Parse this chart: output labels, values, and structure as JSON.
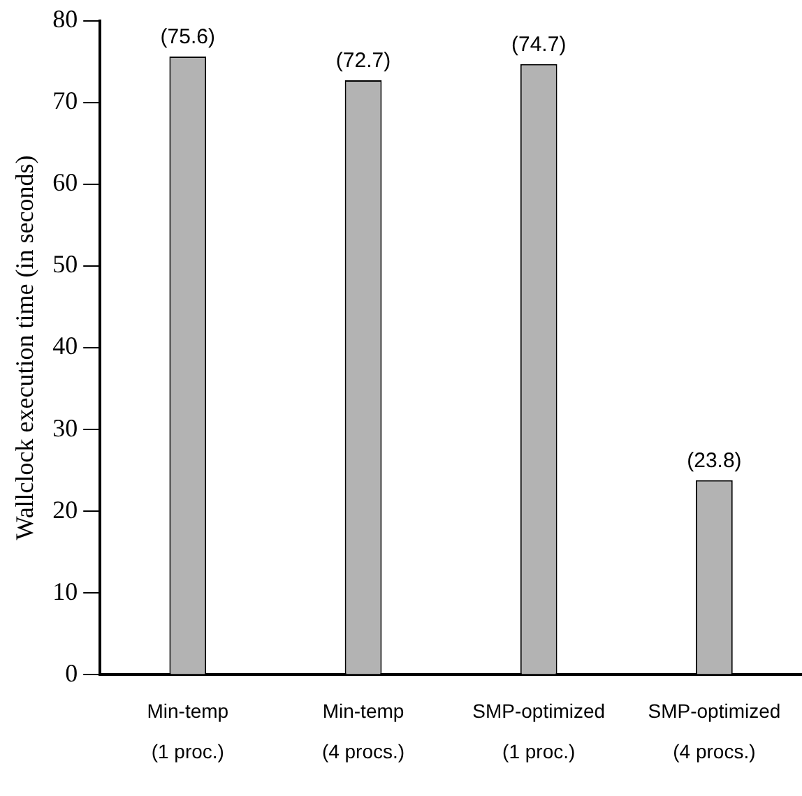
{
  "chart_data": {
    "type": "bar",
    "ylabel": "Wallclock execution time (in seconds)",
    "categories": [
      "Min-temp\n(1 proc.)",
      "Min-temp\n(4 procs.)",
      "SMP-optimized\n(1 proc.)",
      "SMP-optimized\n(4 procs.)"
    ],
    "values": [
      75.6,
      72.7,
      74.7,
      23.8
    ],
    "value_labels": [
      "(75.6)",
      "(72.7)",
      "(74.7)",
      "(23.8)"
    ],
    "color": "#b3b3b3",
    "ylim": [
      0,
      80
    ],
    "yticks": [
      0,
      10,
      20,
      30,
      40,
      50,
      60,
      70,
      80
    ],
    "grid": false,
    "legend": false
  }
}
